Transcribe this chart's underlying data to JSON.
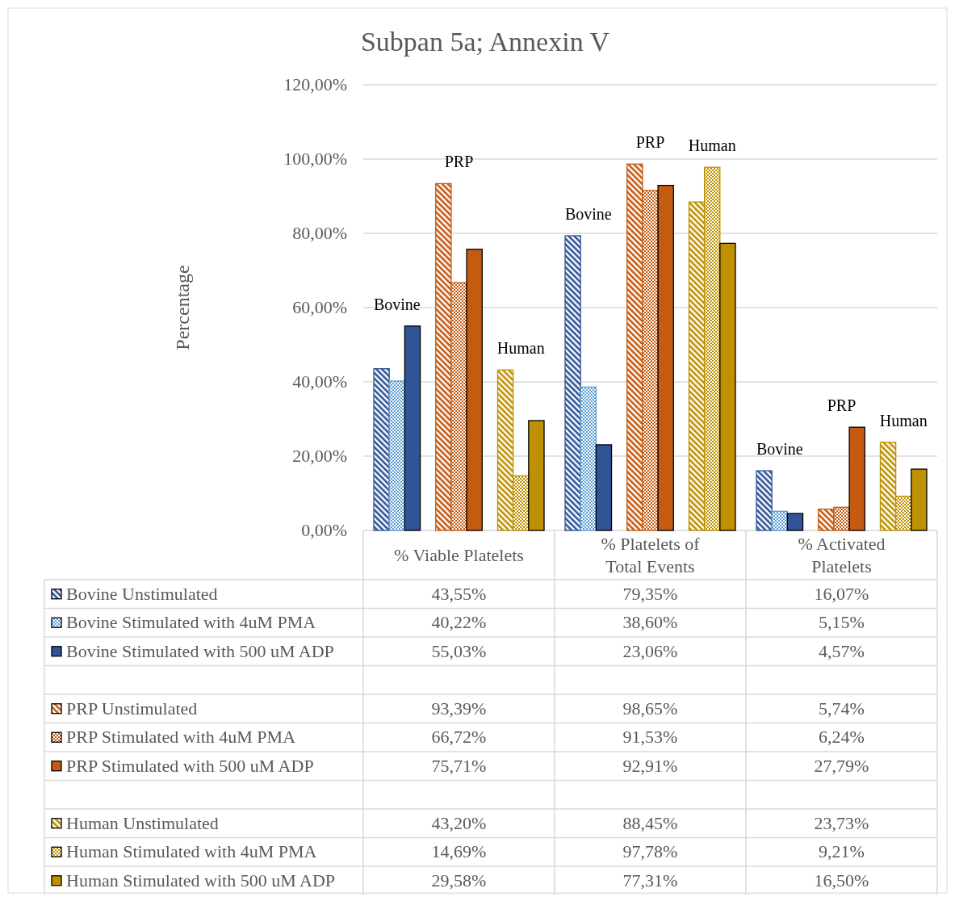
{
  "chart_data": {
    "type": "bar",
    "title": "Subpan 5a; Annexin V",
    "ylabel": "Percentage",
    "categories": [
      "% Viable Platelets",
      "% Platelets of Total Events",
      "% Activated Platelets"
    ],
    "series": [
      {
        "name": "Bovine Unstimulated",
        "color": "#2f5597",
        "values": [
          43.55,
          79.35,
          16.07
        ],
        "value_labels": [
          "43,55%",
          "79,35%",
          "16,07%"
        ]
      },
      {
        "name": "Bovine Stimulated with 4uM PMA",
        "color": "#5b9bd5",
        "values": [
          40.22,
          38.6,
          5.15
        ],
        "value_labels": [
          "40,22%",
          "38,60%",
          "5,15%"
        ]
      },
      {
        "name": "Bovine Stimulated with 500 uM ADP",
        "color": "#2f5597",
        "values": [
          55.03,
          23.06,
          4.57
        ],
        "value_labels": [
          "55,03%",
          "23,06%",
          "4,57%"
        ]
      },
      {
        "name": "PRP Unstimulated",
        "color": "#c55a11",
        "values": [
          93.39,
          98.65,
          5.74
        ],
        "value_labels": [
          "93,39%",
          "98,65%",
          "5,74%"
        ]
      },
      {
        "name": "PRP Stimulated with 4uM PMA",
        "color": "#c55a11",
        "values": [
          66.72,
          91.53,
          6.24
        ],
        "value_labels": [
          "66,72%",
          "91,53%",
          "6,24%"
        ]
      },
      {
        "name": "PRP Stimulated with 500 uM ADP",
        "color": "#c55a11",
        "values": [
          75.71,
          92.91,
          27.79
        ],
        "value_labels": [
          "75,71%",
          "92,91%",
          "27,79%"
        ]
      },
      {
        "name": "Human Unstimulated",
        "color": "#bf9000",
        "values": [
          43.2,
          88.45,
          23.73
        ],
        "value_labels": [
          "43,20%",
          "88,45%",
          "23,73%"
        ]
      },
      {
        "name": "Human Stimulated with 4uM PMA",
        "color": "#bf9000",
        "values": [
          14.69,
          97.78,
          9.21
        ],
        "value_labels": [
          "14,69%",
          "97,78%",
          "9,21%"
        ]
      },
      {
        "name": "Human Stimulated with 500 uM ADP",
        "color": "#bf9000",
        "values": [
          29.58,
          77.31,
          16.5
        ],
        "value_labels": [
          "29,58%",
          "77,31%",
          "16,50%"
        ]
      }
    ],
    "annotations": [
      "Bovine",
      "PRP",
      "Human",
      "Bovine",
      "PRP",
      "Human",
      "Bovine",
      "PRP",
      "Human"
    ],
    "ylim": [
      0,
      120
    ],
    "yticks": [
      {
        "value": 0,
        "label": "0,00%"
      },
      {
        "value": 20,
        "label": "20,00%"
      },
      {
        "value": 40,
        "label": "40,00%"
      },
      {
        "value": 60,
        "label": "60,00%"
      },
      {
        "value": 80,
        "label": "80,00%"
      },
      {
        "value": 100,
        "label": "100,00%"
      },
      {
        "value": 120,
        "label": "120,00%"
      }
    ],
    "grid": true,
    "legend": "bottom"
  }
}
